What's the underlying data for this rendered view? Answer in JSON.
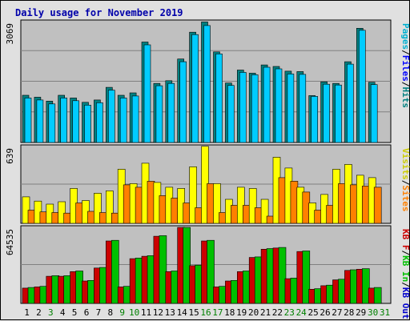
{
  "chart_data": {
    "type": "bar",
    "title": "Daily usage for November 2019",
    "categories": [
      "1",
      "2",
      "3",
      "4",
      "5",
      "6",
      "7",
      "8",
      "9",
      "10",
      "11",
      "12",
      "13",
      "14",
      "15",
      "16",
      "17",
      "18",
      "19",
      "20",
      "21",
      "22",
      "23",
      "24",
      "25",
      "26",
      "27",
      "28",
      "29",
      "30",
      "31"
    ],
    "weekend_days": [
      "3",
      "9",
      "10",
      "16",
      "17",
      "23",
      "24",
      "30",
      "31"
    ],
    "colors": {
      "title": "#0000aa",
      "background": "#e0e0e0",
      "panel": "#c0c0c0",
      "weekday_tick": "#000000",
      "weekend_tick": "#008000",
      "pages": "#00b050",
      "files": "#00aaff",
      "hits": "#008080",
      "visits": "#ffff00",
      "sites": "#ff8000",
      "kb_in": "#00c000",
      "kb_out": "#cc0000"
    },
    "panels": [
      {
        "ymax_label": "3069",
        "ymax": 3069,
        "legend": [
          {
            "text": "Pages",
            "color": "#00b0d0"
          },
          {
            "text": "Files",
            "color": "#0000ff"
          },
          {
            "text": "Hits",
            "color": "#008080"
          }
        ],
        "separator": "/",
        "series": [
          {
            "name": "Hits",
            "color": "#008080",
            "values": [
              1200,
              1150,
              1050,
              1200,
              1130,
              1020,
              1080,
              1400,
              1200,
              1260,
              2550,
              1500,
              1570,
              2120,
              2800,
              3060,
              2300,
              1510,
              1840,
              1760,
              1970,
              1930,
              1810,
              1800,
              1190,
              1540,
              1500,
              2050,
              2900,
              1530,
              0
            ]
          },
          {
            "name": "Files",
            "color": "#00ccff",
            "values": [
              1130,
              1080,
              980,
              1130,
              1060,
              950,
              1010,
              1330,
              1130,
              1180,
              2480,
              1440,
              1500,
              2050,
              2740,
              2970,
              2250,
              1450,
              1780,
              1720,
              1910,
              1870,
              1740,
              1730,
              1170,
              1480,
              1460,
              1990,
              2850,
              1470,
              0
            ]
          }
        ]
      },
      {
        "ymax_label": "639",
        "ymax": 639,
        "legend": [
          {
            "text": "Visits",
            "color": "#cccc00"
          },
          {
            "text": "Sites",
            "color": "#ff8000"
          }
        ],
        "separator": "/",
        "series": [
          {
            "name": "Visits",
            "color": "#ffff00",
            "values": [
              220,
              185,
              160,
              180,
              290,
              190,
              250,
              270,
              450,
              330,
              500,
              340,
              300,
              290,
              470,
              640,
              330,
              200,
              300,
              290,
              200,
              550,
              460,
              300,
              170,
              240,
              450,
              490,
              400,
              380,
              0
            ]
          },
          {
            "name": "Sites",
            "color": "#ff8000",
            "values": [
              110,
              95,
              90,
              85,
              170,
              100,
              90,
              85,
              320,
              300,
              350,
              230,
              210,
              170,
              130,
              330,
              90,
              150,
              150,
              130,
              60,
              380,
              350,
              260,
              110,
              150,
              330,
              320,
              310,
              300,
              0
            ]
          }
        ]
      },
      {
        "ymax_label": "64535",
        "ymax": 64535,
        "legend": [
          {
            "text": "KB F",
            "color": "#cc0000"
          },
          {
            "text": "KB In",
            "color": "#00c000"
          },
          {
            "text": "KB Out",
            "color": "#0000cc"
          }
        ],
        "separator": "/",
        "series": [
          {
            "name": "KB F",
            "color": "#cc0000",
            "values": [
              13000,
              14000,
              23000,
              23000,
              27000,
              19000,
              30000,
              53000,
              14000,
              38000,
              40000,
              57000,
              27000,
              64500,
              32000,
              53000,
              14000,
              19000,
              27000,
              39000,
              46000,
              47000,
              21000,
              44000,
              12000,
              15000,
              20000,
              28000,
              29000,
              13000,
              0
            ]
          },
          {
            "name": "KB In",
            "color": "#00c000",
            "values": [
              13500,
              14500,
              23500,
              23500,
              27500,
              19500,
              30500,
              53500,
              14500,
              38500,
              40500,
              57500,
              27500,
              64500,
              32500,
              53500,
              14500,
              19500,
              27500,
              39500,
              46500,
              47500,
              21500,
              44500,
              12500,
              15500,
              20500,
              28500,
              29500,
              13500,
              0
            ]
          }
        ]
      }
    ]
  }
}
